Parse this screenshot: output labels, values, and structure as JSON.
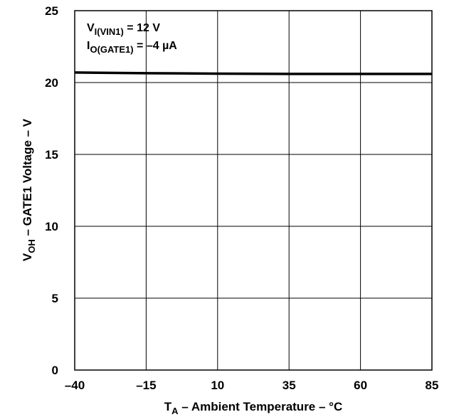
{
  "chart_data": {
    "type": "line",
    "xlabel": {
      "main": "T",
      "sub": "A",
      "rest": " – Ambient Temperature – °C"
    },
    "ylabel": {
      "main": "V",
      "sub": "OH",
      "rest": " – GATE1 Voltage – V"
    },
    "x_ticks": [
      "–40",
      "–15",
      "10",
      "35",
      "60",
      "85"
    ],
    "y_ticks": [
      "0",
      "5",
      "10",
      "15",
      "20",
      "25"
    ],
    "xlim": [
      -40,
      85
    ],
    "ylim": [
      0,
      25
    ],
    "grid": true,
    "annotations": [
      {
        "main": "V",
        "sub": "I(VIN1)",
        "rest": " = 12 V"
      },
      {
        "main": "I",
        "sub": "O(GATE1)",
        "rest": " = –4 µA"
      }
    ],
    "series": [
      {
        "x": [
          -40,
          -15,
          10,
          35,
          60,
          85
        ],
        "y": [
          20.7,
          20.65,
          20.62,
          20.6,
          20.6,
          20.6
        ]
      }
    ]
  }
}
